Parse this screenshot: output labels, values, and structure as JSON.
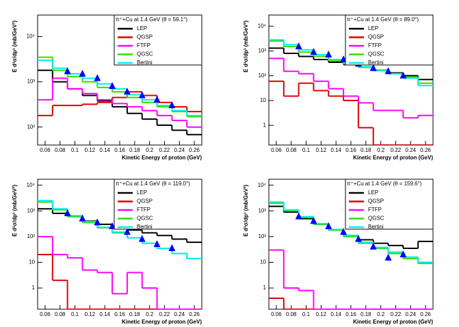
{
  "chart_data": [
    {
      "type": "histogram",
      "title": "π⁺+Cu at 1.4 GeV (θ = 59.1°)",
      "xlabel": "Kinetic Energy of proton (GeV)",
      "ylabel": "E d³σ/dp³ (mb/GeV²)",
      "log_y": true,
      "xlim": [
        0.05,
        0.27
      ],
      "xticks": [
        0.06,
        0.08,
        0.1,
        0.12,
        0.14,
        0.16,
        0.18,
        0.2,
        0.22,
        0.24,
        0.26
      ],
      "ylim": [
        40,
        30000
      ],
      "yticks": [
        {
          "value": 100,
          "label": "10²"
        },
        {
          "value": 1000,
          "label": "10³"
        },
        {
          "value": 10000,
          "label": "10⁴"
        }
      ],
      "bins": [
        0.05,
        0.07,
        0.09,
        0.11,
        0.13,
        0.15,
        0.17,
        0.19,
        0.21,
        0.23,
        0.25,
        0.27
      ],
      "series": [
        {
          "name": "LEP",
          "color": "#000000",
          "values": [
            1800,
            1000,
            700,
            500,
            380,
            280,
            200,
            150,
            110,
            85,
            68
          ]
        },
        {
          "name": "QGSP",
          "color": "#dd0000",
          "values": [
            180,
            300,
            300,
            320,
            350,
            450,
            600,
            500,
            350,
            280,
            220
          ]
        },
        {
          "name": "FTFP",
          "color": "#ff00ff",
          "values": [
            400,
            1200,
            700,
            550,
            400,
            330,
            280,
            230,
            180,
            140,
            100
          ]
        },
        {
          "name": "QGSC",
          "color": "#33dd00",
          "values": [
            3500,
            1800,
            1300,
            1000,
            750,
            600,
            450,
            350,
            280,
            220,
            170
          ]
        },
        {
          "name": "Bertini",
          "color": "#00eeee",
          "values": [
            3000,
            2000,
            1500,
            1200,
            900,
            700,
            520,
            400,
            300,
            230,
            180
          ]
        }
      ],
      "points": {
        "color": "#0000ff",
        "x": [
          0.09,
          0.11,
          0.13,
          0.15,
          0.17,
          0.19,
          0.21,
          0.23
        ],
        "values": [
          1700,
          1500,
          1200,
          800,
          600,
          500,
          400,
          300
        ]
      }
    },
    {
      "type": "histogram",
      "title": "π⁺+Cu at 1.4 GeV (θ = 89.0°)",
      "xlabel": "Kinetic Energy of proton (GeV)",
      "ylabel": "E d³σ/dp³ (mb/GeV²)",
      "log_y": true,
      "xlim": [
        0.05,
        0.27
      ],
      "xticks": [
        0.06,
        0.08,
        0.1,
        0.12,
        0.14,
        0.16,
        0.18,
        0.2,
        0.22,
        0.24,
        0.26
      ],
      "ylim": [
        0.16,
        28000
      ],
      "yticks": [
        1,
        10,
        {
          "value": 100,
          "label": "10²"
        },
        {
          "value": 1000,
          "label": "10³"
        },
        {
          "value": 10000,
          "label": "10⁴"
        }
      ],
      "bins": [
        0.05,
        0.07,
        0.09,
        0.11,
        0.13,
        0.15,
        0.17,
        0.19,
        0.21,
        0.23,
        0.25,
        0.27
      ],
      "series": [
        {
          "name": "LEP",
          "color": "#000000",
          "values": [
            1300,
            800,
            600,
            450,
            350,
            280,
            220,
            170,
            130,
            100,
            70
          ]
        },
        {
          "name": "QGSP",
          "color": "#dd0000",
          "values": [
            60,
            15,
            50,
            25,
            15,
            10,
            0.8,
            0,
            0,
            0,
            0
          ]
        },
        {
          "name": "FTFP",
          "color": "#ff00ff",
          "values": [
            500,
            150,
            120,
            60,
            30,
            15,
            8,
            4,
            4,
            2,
            2.5
          ]
        },
        {
          "name": "QGSC",
          "color": "#33dd00",
          "values": [
            2500,
            1500,
            900,
            600,
            400,
            300,
            220,
            160,
            120,
            90,
            50
          ]
        },
        {
          "name": "Bertini",
          "color": "#00eeee",
          "values": [
            2800,
            1800,
            1100,
            700,
            450,
            320,
            230,
            170,
            120,
            80,
            40
          ]
        }
      ],
      "points": {
        "color": "#0000ff",
        "x": [
          0.09,
          0.11,
          0.13,
          0.15,
          0.17,
          0.19,
          0.21,
          0.23
        ],
        "values": [
          1500,
          900,
          700,
          450,
          300,
          200,
          150,
          100
        ]
      }
    },
    {
      "type": "histogram",
      "title": "π⁺+Cu at 1.4 GeV (θ = 119.0°)",
      "xlabel": "Kinetic Energy of proton (GeV)",
      "ylabel": "E d³σ/dp³ (mb/GeV²)",
      "log_y": true,
      "xlim": [
        0.05,
        0.27
      ],
      "xticks": [
        0.06,
        0.08,
        0.1,
        0.12,
        0.14,
        0.16,
        0.18,
        0.2,
        0.22,
        0.24,
        0.26
      ],
      "ylim": [
        0.15,
        17000
      ],
      "yticks": [
        1,
        10,
        {
          "value": 100,
          "label": "10²"
        },
        {
          "value": 1000,
          "label": "10³"
        },
        {
          "value": 10000,
          "label": "10⁴"
        }
      ],
      "bins": [
        0.05,
        0.07,
        0.09,
        0.11,
        0.13,
        0.15,
        0.17,
        0.19,
        0.21,
        0.23,
        0.25,
        0.27
      ],
      "series": [
        {
          "name": "LEP",
          "color": "#000000",
          "values": [
            1200,
            800,
            600,
            400,
            300,
            230,
            180,
            140,
            110,
            80,
            60
          ]
        },
        {
          "name": "QGSP",
          "color": "#dd0000",
          "values": [
            20,
            2,
            0,
            0,
            0,
            0,
            0,
            0,
            0,
            0,
            0
          ]
        },
        {
          "name": "FTFP",
          "color": "#ff00ff",
          "values": [
            100,
            20,
            15,
            5,
            4,
            0.6,
            4,
            1,
            0,
            0,
            0
          ]
        },
        {
          "name": "QGSC",
          "color": "#33dd00",
          "values": [
            2200,
            1100,
            600,
            350,
            220,
            140,
            90,
            55,
            35,
            22,
            14
          ]
        },
        {
          "name": "Bertini",
          "color": "#00eeee",
          "values": [
            2500,
            1200,
            650,
            380,
            230,
            150,
            90,
            55,
            35,
            22,
            14
          ]
        }
      ],
      "points": {
        "color": "#0000ff",
        "x": [
          0.09,
          0.11,
          0.13,
          0.15,
          0.17,
          0.19,
          0.21,
          0.23
        ],
        "values": [
          800,
          500,
          350,
          250,
          150,
          80,
          50,
          35
        ]
      }
    },
    {
      "type": "histogram",
      "title": "π⁺+Cu at 1.4 GeV (θ = 159.6°)",
      "xlabel": "Kinetic Energy of proton (GeV)",
      "ylabel": "E d³σ/dp³ (mb/GeV²)",
      "log_y": true,
      "xlim": [
        0.05,
        0.27
      ],
      "xticks": [
        0.06,
        0.08,
        0.1,
        0.12,
        0.14,
        0.16,
        0.18,
        0.2,
        0.22,
        0.24,
        0.26
      ],
      "ylim": [
        0.15,
        17000
      ],
      "yticks": [
        1,
        10,
        {
          "value": 100,
          "label": "10²"
        },
        {
          "value": 1000,
          "label": "10³"
        },
        {
          "value": 10000,
          "label": "10⁴"
        }
      ],
      "bins": [
        0.05,
        0.07,
        0.09,
        0.11,
        0.13,
        0.15,
        0.17,
        0.19,
        0.21,
        0.23,
        0.25,
        0.27
      ],
      "series": [
        {
          "name": "LEP",
          "color": "#000000",
          "values": [
            1500,
            900,
            500,
            300,
            180,
            110,
            75,
            55,
            45,
            35,
            65
          ]
        },
        {
          "name": "QGSP",
          "color": "#dd0000",
          "values": [
            0.4,
            0,
            0,
            0,
            0,
            0,
            0,
            0,
            0,
            0,
            0
          ]
        },
        {
          "name": "FTFP",
          "color": "#ff00ff",
          "values": [
            30,
            1,
            0.8,
            0,
            0,
            0,
            0,
            0,
            0,
            0,
            0
          ]
        },
        {
          "name": "QGSC",
          "color": "#33dd00",
          "values": [
            2000,
            1000,
            550,
            300,
            180,
            100,
            55,
            35,
            22,
            14,
            9
          ]
        },
        {
          "name": "Bertini",
          "color": "#00eeee",
          "values": [
            2200,
            1100,
            600,
            320,
            190,
            110,
            60,
            38,
            25,
            16,
            10
          ]
        }
      ],
      "points": {
        "color": "#0000ff",
        "x": [
          0.09,
          0.11,
          0.13,
          0.15,
          0.17,
          0.19,
          0.21,
          0.23
        ],
        "values": [
          600,
          400,
          250,
          150,
          80,
          40,
          15,
          20
        ]
      }
    }
  ]
}
